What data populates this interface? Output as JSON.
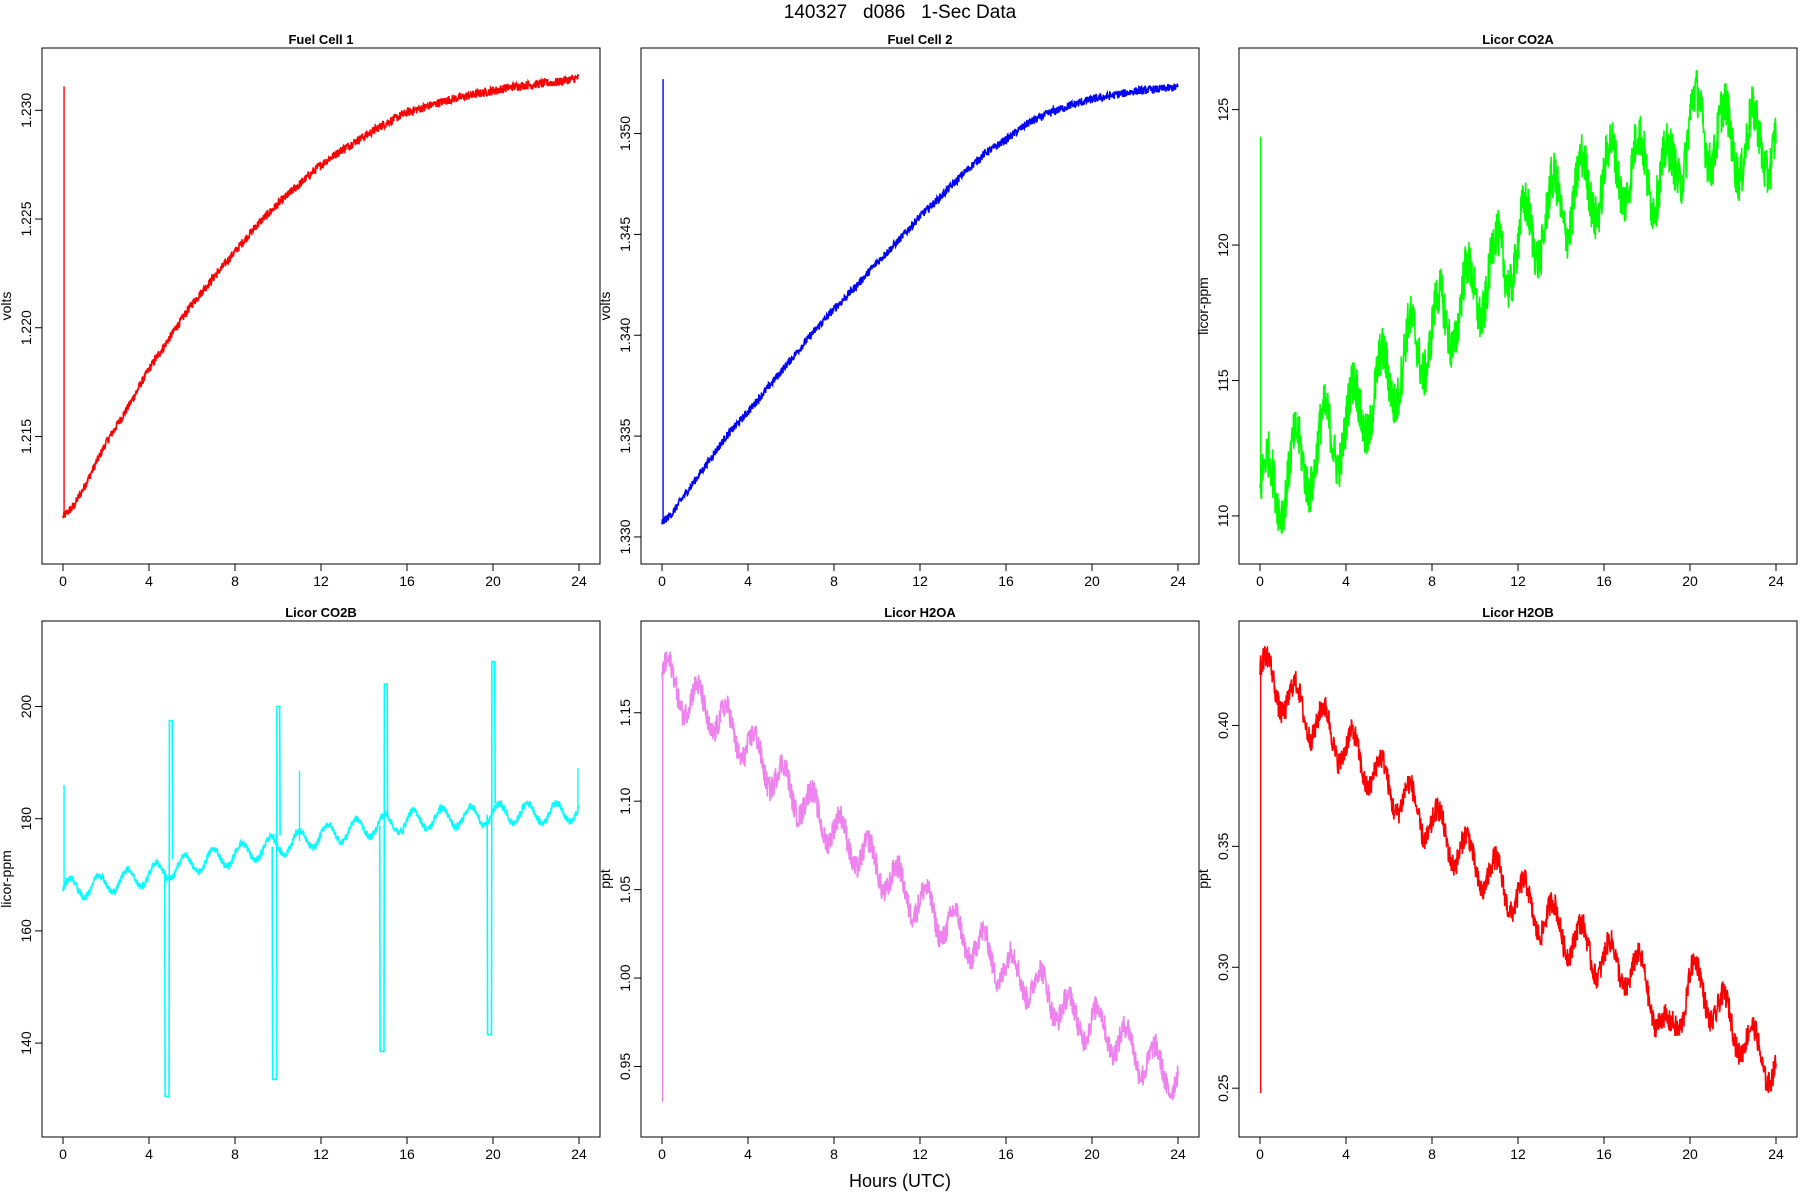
{
  "figure": {
    "title": "140327   d086   1-Sec Data",
    "xlabel": "Hours (UTC)"
  },
  "chart_data": [
    {
      "type": "line",
      "title": "Fuel Cell 1",
      "ylabel": "volts",
      "color": "#ff0000",
      "xlim": [
        0,
        24
      ],
      "ylim": [
        1.2101,
        1.2319
      ],
      "xticks": [
        0,
        4,
        8,
        12,
        16,
        20,
        24
      ],
      "yticks": [
        1.215,
        1.22,
        1.225,
        1.23
      ],
      "ytick_labels": [
        "1.215",
        "1.220",
        "1.225",
        "1.230"
      ],
      "series": [
        {
          "x": [
            0,
            0.5,
            1,
            2,
            3,
            4,
            5,
            6,
            7,
            8,
            9,
            10,
            11,
            12,
            13,
            14,
            15,
            16,
            17,
            18,
            19,
            20,
            21,
            22,
            23,
            24
          ],
          "y": [
            1.2113,
            1.2118,
            1.2127,
            1.2147,
            1.2163,
            1.2181,
            1.2196,
            1.2211,
            1.2223,
            1.2235,
            1.2247,
            1.2257,
            1.2266,
            1.2275,
            1.2282,
            1.2288,
            1.2294,
            1.2299,
            1.2302,
            1.2305,
            1.2307,
            1.2309,
            1.2311,
            1.2312,
            1.2313,
            1.2315
          ],
          "noise": 0.0002,
          "wave": 0
        }
      ],
      "spikes": [
        {
          "x": 0.05,
          "to": 1.2311
        },
        {
          "x": 6.9,
          "to": 1.2222
        },
        {
          "x": 18.2,
          "to": 1.2306
        }
      ]
    },
    {
      "type": "line",
      "title": "Fuel Cell 2",
      "ylabel": "volts",
      "color": "#0000ff",
      "xlim": [
        0,
        24
      ],
      "ylim": [
        1.3297,
        1.3532
      ],
      "xticks": [
        0,
        4,
        8,
        12,
        16,
        20,
        24
      ],
      "yticks": [
        1.33,
        1.335,
        1.34,
        1.345,
        1.35
      ],
      "ytick_labels": [
        "1.330",
        "1.335",
        "1.340",
        "1.345",
        "1.350"
      ],
      "series": [
        {
          "x": [
            0,
            0.5,
            1,
            2,
            3,
            4,
            5,
            6,
            7,
            8,
            9,
            10,
            11,
            12,
            13,
            14,
            15,
            16,
            17,
            18,
            19,
            20,
            21,
            22,
            23,
            24
          ],
          "y": [
            1.3307,
            1.3312,
            1.332,
            1.3335,
            1.335,
            1.3362,
            1.3375,
            1.3388,
            1.3401,
            1.3413,
            1.3424,
            1.3436,
            1.3447,
            1.3459,
            1.3469,
            1.348,
            1.349,
            1.3497,
            1.3505,
            1.351,
            1.3514,
            1.3517,
            1.3519,
            1.3521,
            1.3522,
            1.3523
          ],
          "noise": 0.0002,
          "wave": 0
        }
      ],
      "spikes": [
        {
          "x": 0.05,
          "to": 1.3527
        },
        {
          "x": 18.2,
          "to": 1.3514
        }
      ]
    },
    {
      "type": "line",
      "title": "Licor CO2A",
      "ylabel": "licor-ppm",
      "color": "#00ff00",
      "xlim": [
        0,
        24
      ],
      "ylim": [
        109.0,
        126.5
      ],
      "xticks": [
        0,
        4,
        8,
        12,
        16,
        20,
        24
      ],
      "yticks": [
        110,
        115,
        120,
        125
      ],
      "ytick_labels": [
        "110",
        "115",
        "120",
        "125"
      ],
      "series": [
        {
          "x": [
            0,
            1,
            2,
            3,
            4,
            5,
            6,
            7,
            8,
            9,
            10,
            11,
            12,
            13,
            14,
            15,
            16,
            17,
            18,
            19,
            20,
            21,
            22,
            23,
            24
          ],
          "y": [
            110.8,
            111.4,
            112.0,
            112.7,
            113.4,
            114.2,
            115.1,
            116.0,
            116.8,
            117.5,
            118.3,
            119.2,
            120.0,
            120.8,
            121.5,
            122.0,
            122.4,
            122.9,
            122.8,
            122.3,
            124.5,
            124.2,
            123.8,
            123.7,
            124.0
          ],
          "noise": 0.9,
          "wave": 1.3
        }
      ],
      "spikes": [
        {
          "x": 0.03,
          "to": 124.0
        }
      ]
    },
    {
      "type": "line",
      "title": "Licor CO2B",
      "ylabel": "licor-ppm",
      "color": "#00ffff",
      "xlim": [
        0,
        24
      ],
      "ylim": [
        127.0,
        211.5
      ],
      "xticks": [
        0,
        4,
        8,
        12,
        16,
        20,
        24
      ],
      "yticks": [
        140,
        160,
        180,
        200
      ],
      "ytick_labels": [
        "140",
        "160",
        "180",
        "200"
      ],
      "series": [
        {
          "x": [
            0,
            1,
            2,
            3,
            4,
            5,
            6,
            7,
            8,
            9,
            10,
            11,
            12,
            13,
            14,
            15,
            16,
            17,
            18,
            19,
            20,
            21,
            22,
            23,
            24
          ],
          "y": [
            167.5,
            167.8,
            168.5,
            169.2,
            170.0,
            171.0,
            172.0,
            172.8,
            173.6,
            174.4,
            175.2,
            176.0,
            177.0,
            177.7,
            178.4,
            179.0,
            179.5,
            180.0,
            180.2,
            180.4,
            180.8,
            181.0,
            181.0,
            181.0,
            181.5
          ],
          "noise": 0.6,
          "wave": 1.8
        }
      ],
      "spikes": [
        {
          "x": 0.05,
          "to": 186.0
        },
        {
          "x": 23.95,
          "to": 189.0
        },
        {
          "x": 11.0,
          "to": 188.5
        }
      ],
      "calibrations": [
        {
          "start": 4.75,
          "low": 130.5,
          "high": 197.5
        },
        {
          "start": 9.75,
          "low": 133.5,
          "high": 200.0
        },
        {
          "start": 14.75,
          "low": 138.5,
          "high": 204.0
        },
        {
          "start": 19.75,
          "low": 141.5,
          "high": 208.0
        }
      ]
    },
    {
      "type": "line",
      "title": "Licor H2OA",
      "ylabel": "ppt",
      "color": "#ee82ee",
      "xlim": [
        0,
        24
      ],
      "ylim": [
        0.922,
        1.19
      ],
      "xticks": [
        0,
        4,
        8,
        12,
        16,
        20,
        24
      ],
      "yticks": [
        0.95,
        1.0,
        1.05,
        1.1,
        1.15
      ],
      "ytick_labels": [
        "0.95",
        "1.00",
        "1.05",
        "1.10",
        "1.15"
      ],
      "series": [
        {
          "x": [
            0,
            1,
            2,
            3,
            4,
            5,
            6,
            7,
            8,
            9,
            10,
            11,
            12,
            13,
            14,
            15,
            16,
            17,
            18,
            19,
            20,
            21,
            22,
            23,
            24
          ],
          "y": [
            1.172,
            1.16,
            1.152,
            1.143,
            1.131,
            1.118,
            1.106,
            1.095,
            1.084,
            1.073,
            1.063,
            1.052,
            1.043,
            1.033,
            1.024,
            1.015,
            1.006,
            0.999,
            0.991,
            0.978,
            0.975,
            0.968,
            0.958,
            0.95,
            0.944
          ],
          "noise": 0.007,
          "wave": 0.011
        }
      ],
      "spikes": [
        {
          "x": 0.03,
          "to": 0.93
        }
      ]
    },
    {
      "type": "line",
      "title": "Licor H2OB",
      "ylabel": "ppt",
      "color": "#ff0000",
      "xlim": [
        0,
        24
      ],
      "ylim": [
        0.2385,
        0.4345
      ],
      "xticks": [
        0,
        4,
        8,
        12,
        16,
        20,
        24
      ],
      "yticks": [
        0.25,
        0.3,
        0.35,
        0.4
      ],
      "ytick_labels": [
        "0.25",
        "0.30",
        "0.35",
        "0.40"
      ],
      "series": [
        {
          "x": [
            0,
            1,
            2,
            3,
            4,
            5,
            6,
            7,
            8,
            9,
            10,
            11,
            12,
            13,
            14,
            15,
            16,
            17,
            18,
            19,
            20,
            21,
            22,
            23,
            24
          ],
          "y": [
            0.423,
            0.414,
            0.406,
            0.399,
            0.391,
            0.383,
            0.375,
            0.367,
            0.359,
            0.351,
            0.343,
            0.336,
            0.329,
            0.322,
            0.316,
            0.309,
            0.303,
            0.3,
            0.294,
            0.268,
            0.296,
            0.286,
            0.276,
            0.266,
            0.258
          ],
          "noise": 0.005,
          "wave": 0.009
        }
      ],
      "spikes": [
        {
          "x": 0.03,
          "to": 0.248
        }
      ]
    }
  ]
}
